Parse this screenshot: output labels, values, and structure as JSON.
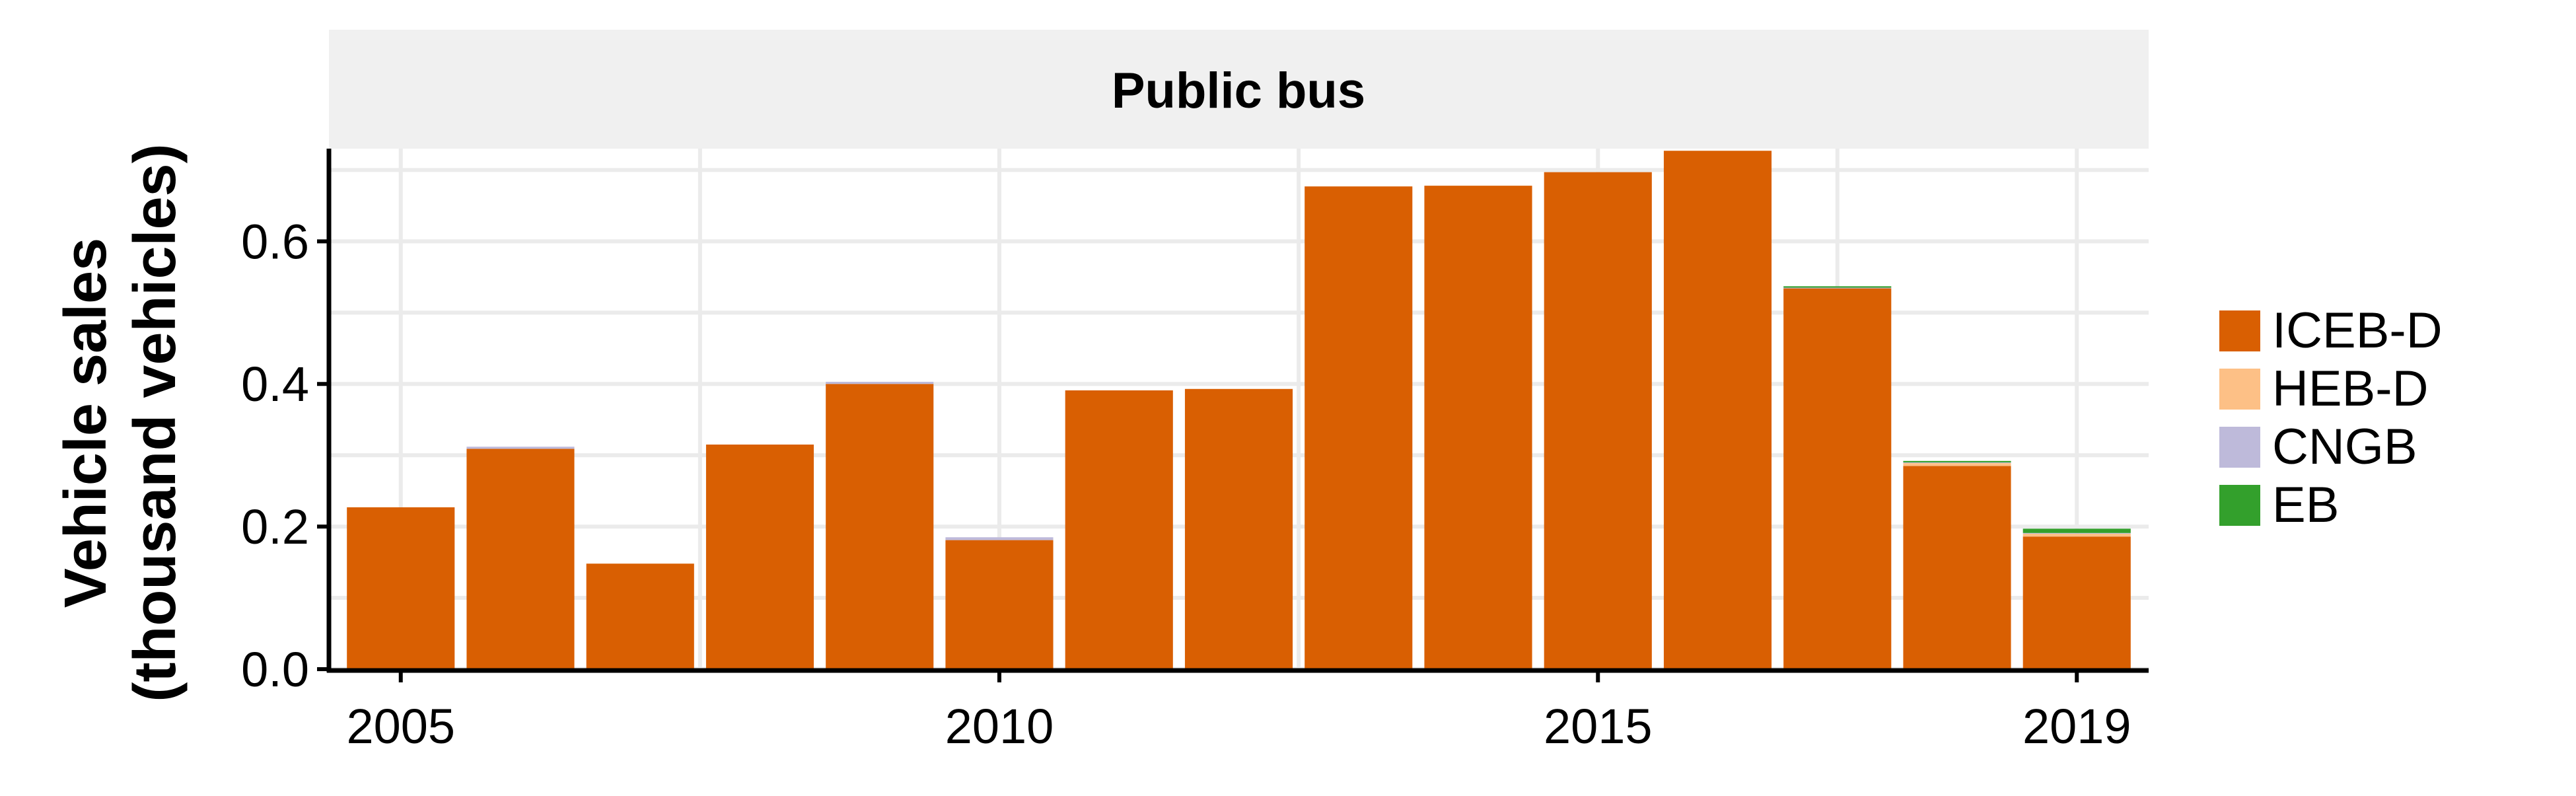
{
  "chart_data": {
    "type": "bar",
    "stacked": true,
    "facet_title": "Public bus",
    "ylabel_line1": "Vehicle sales",
    "ylabel_line2": "(thousand vehicles)",
    "xlabel": "",
    "x": [
      2005,
      2006,
      2007,
      2008,
      2009,
      2010,
      2011,
      2012,
      2013,
      2014,
      2015,
      2016,
      2017,
      2018,
      2019
    ],
    "xticks": [
      2005,
      2010,
      2015,
      2019
    ],
    "yticks": [
      "0.0",
      "0.2",
      "0.4",
      "0.6"
    ],
    "ylim": [
      0,
      0.73
    ],
    "grid": true,
    "legend_position": "right",
    "series": [
      {
        "name": "ICEB-D",
        "color": "#D95F02",
        "values": [
          0.227,
          0.309,
          0.148,
          0.315,
          0.4,
          0.181,
          0.391,
          0.393,
          0.677,
          0.678,
          0.697,
          0.727,
          0.534,
          0.285,
          0.186
        ]
      },
      {
        "name": "HEB-D",
        "color": "#FDC086",
        "values": [
          0,
          0,
          0,
          0,
          0,
          0,
          0,
          0,
          0,
          0,
          0,
          0,
          0,
          0.004,
          0.004
        ]
      },
      {
        "name": "CNGB",
        "color": "#BEBADA",
        "values": [
          0,
          0.003,
          0,
          0,
          0.003,
          0.004,
          0,
          0,
          0,
          0,
          0,
          0,
          0.001,
          0.001,
          0.001
        ]
      },
      {
        "name": "EB",
        "color": "#33A02C",
        "values": [
          0,
          0,
          0,
          0,
          0,
          0,
          0,
          0,
          0,
          0,
          0,
          0,
          0.002,
          0.002,
          0.006
        ]
      }
    ]
  }
}
